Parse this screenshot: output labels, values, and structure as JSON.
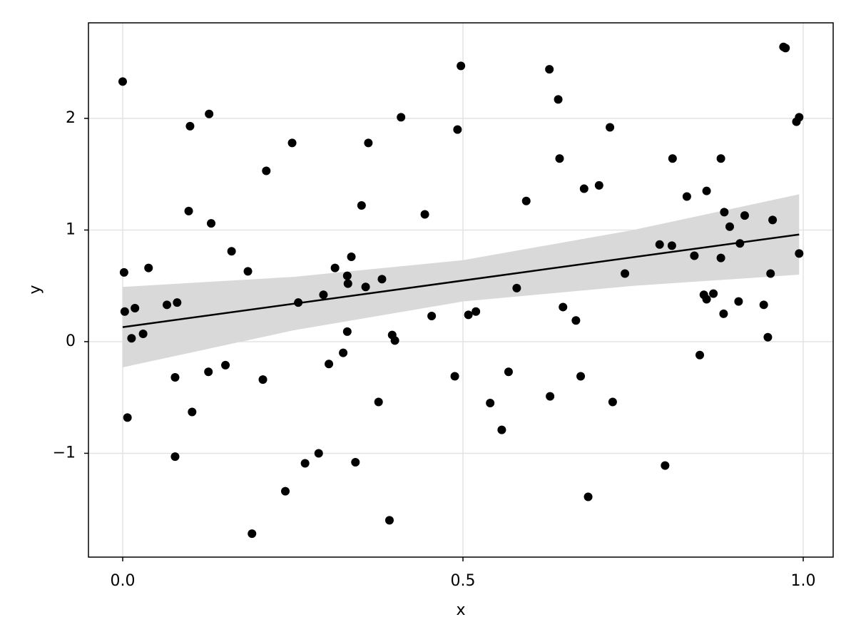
{
  "chart_data": {
    "type": "scatter",
    "xlabel": "x",
    "ylabel": "y",
    "x": [
      0.0,
      0.002,
      0.003,
      0.007,
      0.013,
      0.018,
      0.03,
      0.038,
      0.065,
      0.077,
      0.077,
      0.08,
      0.099,
      0.097,
      0.102,
      0.126,
      0.127,
      0.13,
      0.151,
      0.16,
      0.184,
      0.19,
      0.206,
      0.211,
      0.239,
      0.249,
      0.258,
      0.268,
      0.288,
      0.295,
      0.303,
      0.312,
      0.324,
      0.33,
      0.331,
      0.33,
      0.336,
      0.342,
      0.351,
      0.357,
      0.361,
      0.376,
      0.381,
      0.392,
      0.396,
      0.4,
      0.409,
      0.444,
      0.454,
      0.488,
      0.492,
      0.497,
      0.508,
      0.519,
      0.54,
      0.557,
      0.567,
      0.579,
      0.593,
      0.627,
      0.628,
      0.64,
      0.642,
      0.647,
      0.666,
      0.673,
      0.678,
      0.684,
      0.7,
      0.716,
      0.72,
      0.738,
      0.789,
      0.797,
      0.807,
      0.808,
      0.829,
      0.84,
      0.848,
      0.854,
      0.858,
      0.858,
      0.868,
      0.879,
      0.879,
      0.883,
      0.884,
      0.892,
      0.905,
      0.907,
      0.914,
      0.942,
      0.948,
      0.952,
      0.955,
      0.971,
      0.974,
      0.99,
      0.994,
      0.994
    ],
    "values": [
      2.33,
      0.62,
      0.27,
      -0.68,
      0.03,
      0.3,
      0.07,
      0.66,
      0.33,
      -0.32,
      -1.03,
      0.35,
      1.93,
      1.17,
      -0.63,
      -0.27,
      2.04,
      1.06,
      -0.21,
      0.81,
      0.63,
      -1.72,
      -0.34,
      1.53,
      -1.34,
      1.78,
      0.35,
      -1.09,
      -1.0,
      0.42,
      -0.2,
      0.66,
      -0.1,
      0.59,
      0.52,
      0.09,
      0.76,
      -1.08,
      1.22,
      0.49,
      1.78,
      -0.54,
      0.56,
      -1.6,
      0.06,
      0.01,
      2.01,
      1.14,
      0.23,
      -0.31,
      1.9,
      2.47,
      0.24,
      0.27,
      -0.55,
      -0.79,
      -0.27,
      0.48,
      1.26,
      2.44,
      -0.49,
      2.17,
      1.64,
      0.31,
      0.19,
      -0.31,
      1.37,
      -1.39,
      1.4,
      1.92,
      -0.54,
      0.61,
      0.87,
      -1.11,
      0.86,
      1.64,
      1.3,
      0.77,
      -0.12,
      0.42,
      1.35,
      0.38,
      0.43,
      1.64,
      0.75,
      0.25,
      1.16,
      1.03,
      0.36,
      0.88,
      1.13,
      0.33,
      0.04,
      0.61,
      1.09,
      2.64,
      2.63,
      1.97,
      2.01,
      0.79
    ],
    "color": "#000000",
    "fit": {
      "x": [
        0,
        0.994
      ],
      "values": [
        0.13,
        0.96
      ],
      "color": "#000000"
    },
    "band": {
      "x": [
        0,
        0.25,
        0.5,
        0.75,
        0.994
      ],
      "upper": [
        0.49,
        0.58,
        0.73,
        1.0,
        1.32
      ],
      "lower": [
        -0.23,
        0.1,
        0.36,
        0.5,
        0.6
      ],
      "color": "#d9d9d9"
    },
    "xlim": [
      -0.0503,
      1.044
    ],
    "ylim": [
      -1.93,
      2.856
    ],
    "xticks": [
      {
        "value": 0,
        "label": "0.0"
      },
      {
        "value": 0.5,
        "label": "0.5"
      },
      {
        "value": 1,
        "label": "1.0"
      }
    ],
    "yticks": [
      {
        "value": -1,
        "label": "−1"
      },
      0,
      1,
      2
    ],
    "grid": true
  }
}
